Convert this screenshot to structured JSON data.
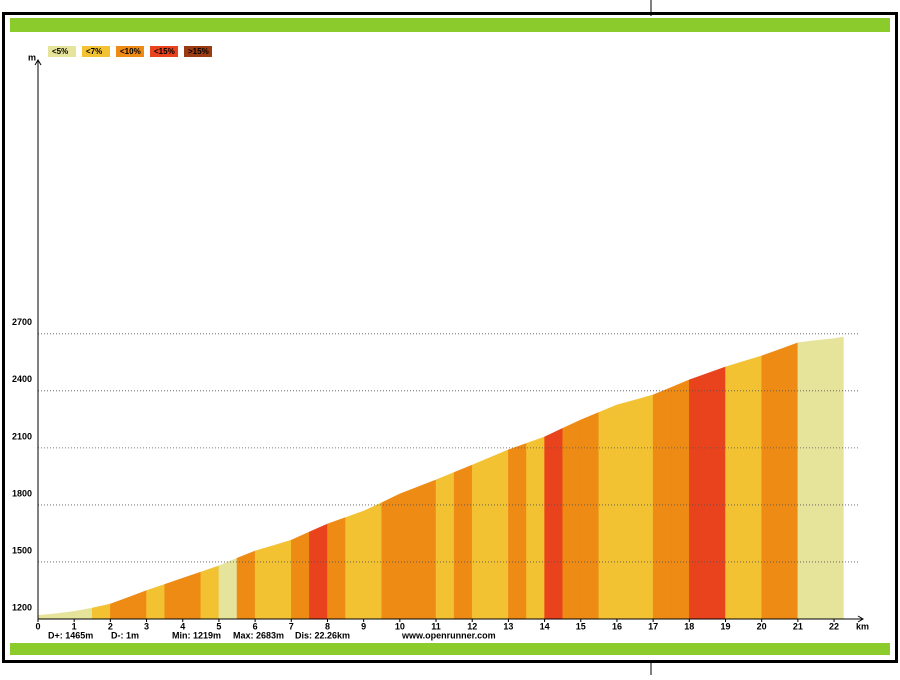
{
  "chart_data": {
    "type": "elevation-profile",
    "x_label": "km",
    "y_label": "m",
    "legend": [
      {
        "name": "<5%",
        "color": "#e6e39b"
      },
      {
        "name": "<7%",
        "color": "#f3c233"
      },
      {
        "name": "<10%",
        "color": "#ee8b14"
      },
      {
        "name": "<15%",
        "color": "#e8431c"
      },
      {
        "name": ">15%",
        "color": "#9b3b12"
      }
    ],
    "x": [
      0,
      0.5,
      1,
      1.5,
      2,
      2.5,
      3,
      3.5,
      4,
      4.5,
      5,
      5.5,
      6,
      6.5,
      7,
      7.5,
      8,
      8.5,
      9,
      9.5,
      10,
      10.5,
      11,
      11.5,
      12,
      12.5,
      13,
      13.5,
      14,
      14.5,
      15,
      15.5,
      16,
      16.5,
      17,
      17.5,
      18,
      18.5,
      19,
      19.5,
      20,
      20.5,
      21,
      21.5,
      22,
      22.26
    ],
    "elevation": [
      1219,
      1228,
      1240,
      1258,
      1279,
      1314,
      1350,
      1382,
      1415,
      1447,
      1480,
      1520,
      1558,
      1586,
      1615,
      1658,
      1700,
      1734,
      1768,
      1812,
      1858,
      1895,
      1932,
      1971,
      2010,
      2050,
      2090,
      2124,
      2158,
      2203,
      2247,
      2287,
      2326,
      2352,
      2379,
      2418,
      2458,
      2492,
      2526,
      2555,
      2584,
      2618,
      2653,
      2665,
      2675,
      2683
    ],
    "grade_class": [
      0,
      0,
      0,
      1,
      2,
      2,
      1,
      2,
      2,
      1,
      0,
      2,
      1,
      1,
      2,
      3,
      2,
      1,
      1,
      2,
      2,
      2,
      1,
      2,
      1,
      1,
      2,
      1,
      3,
      2,
      2,
      1,
      1,
      1,
      2,
      2,
      3,
      3,
      1,
      1,
      2,
      2,
      0,
      0,
      0
    ],
    "xlim": [
      0,
      22.8
    ],
    "ylim": [
      1200,
      4140
    ],
    "xticks": [
      0,
      1,
      2,
      3,
      4,
      5,
      6,
      7,
      8,
      9,
      10,
      11,
      12,
      13,
      14,
      15,
      16,
      17,
      18,
      19,
      20,
      21,
      22
    ],
    "yticks": [
      1200,
      1500,
      1800,
      2100,
      2400,
      2700
    ],
    "grid": true,
    "stats": [
      "D+: 1465m",
      "D-: 1m",
      "Min: 1219m",
      "Max: 2683m",
      "Dis: 22.26km"
    ],
    "source": "www.openrunner.com"
  }
}
